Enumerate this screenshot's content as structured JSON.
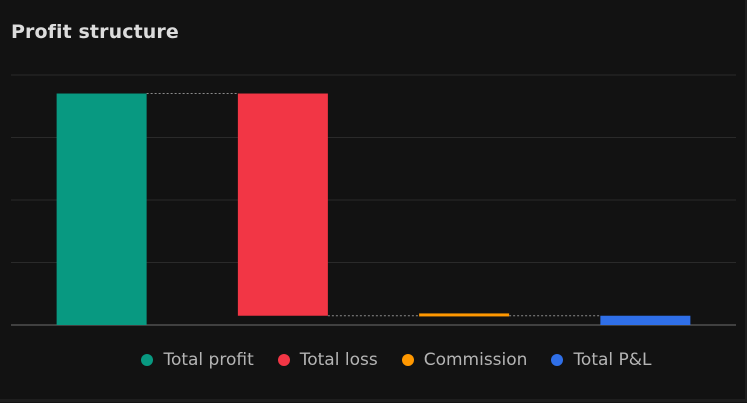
{
  "panel": {
    "title": "Profit structure"
  },
  "chart_data": {
    "type": "waterfall",
    "title": "Profit structure",
    "categories": [
      "Total profit",
      "Total loss",
      "Commission",
      "Total P&L"
    ],
    "steps": [
      {
        "name": "Total profit",
        "start": 0,
        "end": 100,
        "color": "#089981"
      },
      {
        "name": "Total loss",
        "start": 100,
        "end": 4,
        "color": "#f23645"
      },
      {
        "name": "Commission",
        "start": 4,
        "end": 5,
        "color": "#ff9800"
      },
      {
        "name": "Total P&L",
        "start": 4,
        "end": 0,
        "color": "#2f6fe8"
      }
    ],
    "ylim": [
      0,
      108
    ],
    "gridlines": [
      0,
      27,
      54,
      81,
      108
    ],
    "grid": true,
    "legend": "bottom",
    "legend_items": [
      {
        "label": "Total profit",
        "color": "#089981"
      },
      {
        "label": "Total loss",
        "color": "#f23645"
      },
      {
        "label": "Commission",
        "color": "#ff9800"
      },
      {
        "label": "Total P&L",
        "color": "#2f6fe8"
      }
    ]
  }
}
